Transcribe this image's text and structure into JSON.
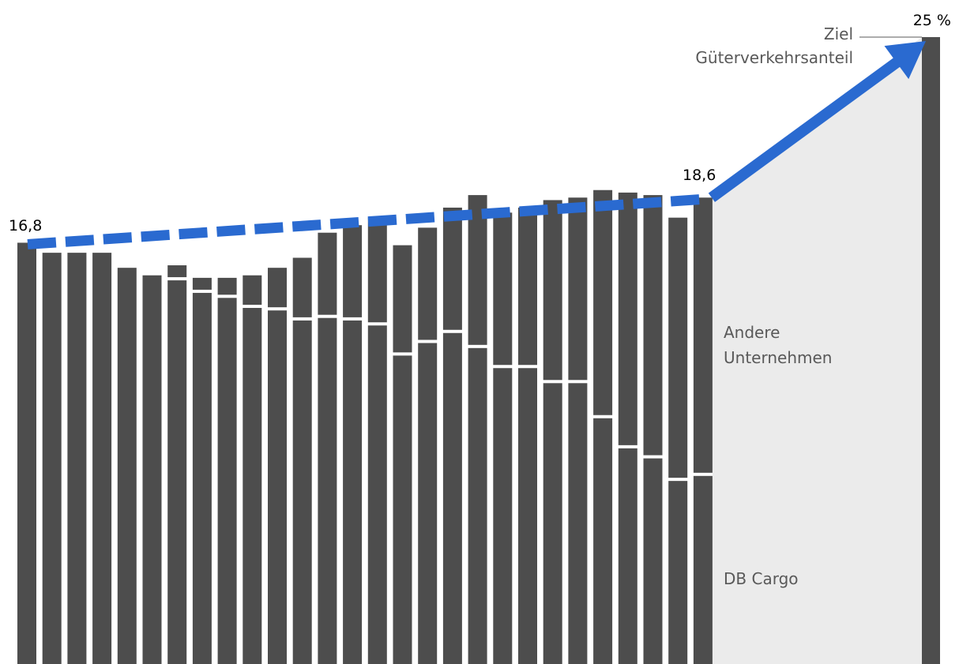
{
  "chart_data": {
    "type": "bar",
    "stacked": true,
    "grid": false,
    "legend": "none",
    "series": [
      {
        "name": "DB Cargo",
        "values": [
          16.8,
          16.4,
          16.4,
          16.4,
          15.8,
          15.5,
          15.3,
          14.8,
          14.6,
          14.2,
          14.1,
          13.7,
          13.8,
          13.7,
          13.5,
          12.3,
          12.8,
          13.2,
          12.6,
          11.8,
          11.8,
          11.2,
          11.2,
          9.8,
          8.6,
          8.2,
          7.3,
          7.5
        ],
        "color": "#4d4d4d"
      },
      {
        "name": "Andere Unternehmen",
        "values": [
          0.0,
          0.0,
          0.0,
          0.0,
          0.0,
          0.0,
          0.6,
          0.6,
          0.8,
          1.3,
          1.7,
          2.5,
          3.4,
          3.8,
          4.3,
          4.4,
          4.6,
          5.0,
          6.1,
          6.2,
          6.4,
          7.3,
          7.4,
          9.1,
          10.2,
          10.5,
          10.5,
          11.1
        ],
        "color": "#4d4d4d"
      }
    ],
    "target": {
      "value": 25,
      "label": "25 %"
    },
    "value_labels": {
      "start": "16,8",
      "end": "18,6"
    },
    "annotations": {
      "target_label": [
        "Ziel",
        "Güterverkehrsanteil"
      ],
      "segment_labels": {
        "andere": [
          "Andere",
          "Unternehmen"
        ],
        "db": [
          "DB Cargo"
        ]
      }
    },
    "ylim": [
      0,
      25
    ],
    "colors": {
      "bar": "#4d4d4d",
      "trend": "#2a6ad0",
      "target_area": "#ebebeb",
      "separator": "#ffffff"
    }
  }
}
